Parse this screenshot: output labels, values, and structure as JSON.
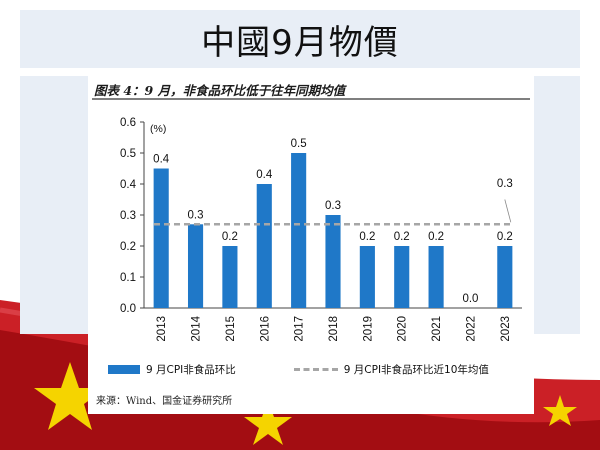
{
  "slide": {
    "title": "中國9月物價"
  },
  "chart_data": {
    "type": "bar",
    "title": "图表 4：9 月，非食品环比低于往年同期均值",
    "unit_label": "(%)",
    "categories": [
      "2013",
      "2014",
      "2015",
      "2016",
      "2017",
      "2018",
      "2019",
      "2020",
      "2021",
      "2022",
      "2023"
    ],
    "series": [
      {
        "name": "9 月CPI非食品环比",
        "values": [
          0.45,
          0.27,
          0.2,
          0.4,
          0.5,
          0.3,
          0.2,
          0.2,
          0.2,
          0.0,
          0.2
        ],
        "color": "#1f78c8"
      }
    ],
    "data_labels": [
      "0.4",
      "0.3",
      "0.2",
      "0.4",
      "0.5",
      "0.3",
      "0.2",
      "0.2",
      "0.2",
      "0.0",
      "0.2"
    ],
    "reference_line": {
      "name": "9 月CPI非食品环比近10年均值",
      "value": 0.27,
      "label": "0.3",
      "color": "#a6a6a6"
    },
    "ylim": [
      0,
      0.6
    ],
    "yticks": [
      "0.0",
      "0.1",
      "0.2",
      "0.3",
      "0.4",
      "0.5",
      "0.6"
    ],
    "source": "来源：Wind、国金证券研究所"
  }
}
